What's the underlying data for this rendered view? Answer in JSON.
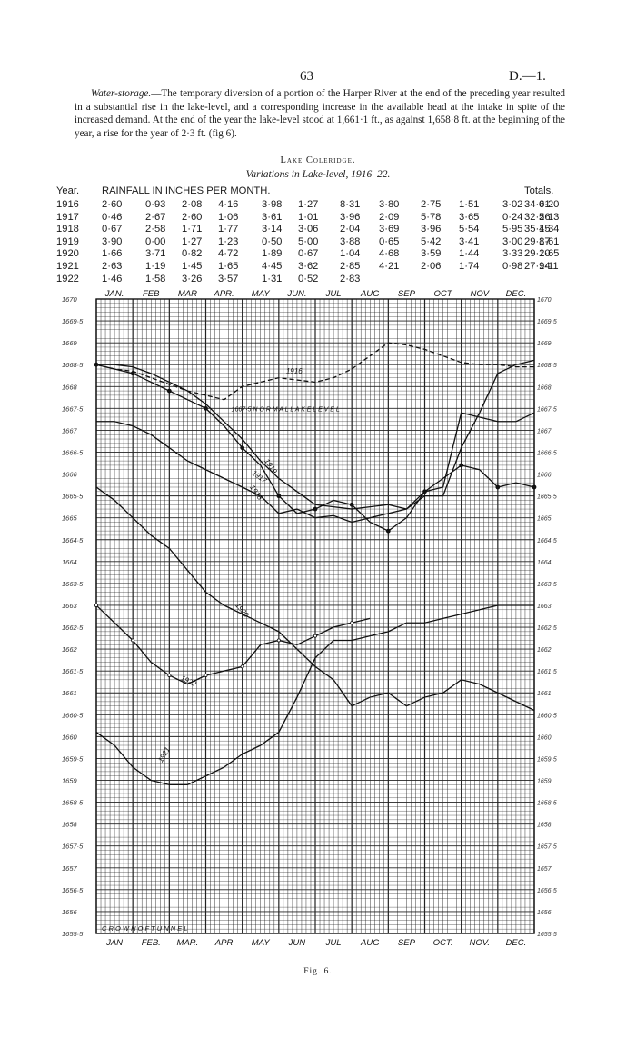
{
  "page": {
    "number": "63",
    "ref": "D.—1.",
    "para_lead": "Water-storage.",
    "para_text": "—The temporary diversion of a portion of the Harper River at the end of the preceding year resulted in a substantial rise in the lake-level, and a corresponding increase in the available head at the intake in spite of the increased demand. At the end of the year the lake-level stood at 1,661·1 ft., as against 1,658·8 ft. at the beginning of the year, a rise for the year of 2·3 ft. (fig 6).",
    "section_title": "Lake Coleridge.",
    "chart_title": "Variations in Lake-level, 1916–22.",
    "fig_caption": "Fig. 6."
  },
  "rainfall": {
    "year_header": "Year.",
    "title": "RAINFALL IN INCHES PER MONTH.",
    "totals_header": "Totals.",
    "rows": [
      {
        "year": "1916",
        "m": [
          "2·60",
          "0·93",
          "2·08",
          "4·16",
          "3·98",
          "1·27",
          "8·31",
          "3·80",
          "2·75",
          "1·51",
          "3·02",
          "0·20"
        ],
        "total": "34·61"
      },
      {
        "year": "1917",
        "m": [
          "0·46",
          "2·67",
          "2·60",
          "1·06",
          "3·61",
          "1·01",
          "3·96",
          "2·09",
          "5·78",
          "3·65",
          "0·24",
          "5·13"
        ],
        "total": "32·26"
      },
      {
        "year": "1918",
        "m": [
          "0·67",
          "2·58",
          "1·71",
          "1·77",
          "3·14",
          "3·06",
          "2·04",
          "3·69",
          "3·96",
          "5·54",
          "5·95",
          "1·34"
        ],
        "total": "35·45"
      },
      {
        "year": "1919",
        "m": [
          "3·90",
          "0·00",
          "1·27",
          "1·23",
          "0·50",
          "5·00",
          "3·88",
          "0·65",
          "5·42",
          "3·41",
          "3·00",
          "1·61"
        ],
        "total": "29·87"
      },
      {
        "year": "1920",
        "m": [
          "1·66",
          "3·71",
          "0·82",
          "4·72",
          "1·89",
          "0·67",
          "1·04",
          "4·68",
          "3·59",
          "1·44",
          "3·33",
          "1·65"
        ],
        "total": "29·20"
      },
      {
        "year": "1921",
        "m": [
          "2·63",
          "1·19",
          "1·45",
          "1·65",
          "4·45",
          "3·62",
          "2·85",
          "4·21",
          "2·06",
          "1·74",
          "0·98",
          "1·11"
        ],
        "total": "27·94"
      },
      {
        "year": "1922",
        "m": [
          "1·46",
          "1·58",
          "3·26",
          "3·57",
          "1·31",
          "0·52",
          "2·83",
          "",
          "",
          "",
          "",
          ""
        ],
        "total": ""
      }
    ]
  },
  "chart_data": {
    "type": "line",
    "title": "Variations in Lake-level, 1916–22.",
    "xlabel": "",
    "ylabel": "",
    "categories": [
      "JAN.",
      "FEB.",
      "MAR.",
      "APR.",
      "MAY",
      "JUN.",
      "JUL.",
      "AUG.",
      "SEP.",
      "OCT.",
      "NOV.",
      "DEC."
    ],
    "top_month_labels": [
      "JAN.",
      "FEB",
      "MAR",
      "APR.",
      "MAY",
      "JUN.",
      "JUL",
      "AUG",
      "SEP",
      "OCT",
      "NOV",
      "DEC."
    ],
    "bottom_month_labels": [
      "JAN",
      "FEB.",
      "MAR.",
      "APR",
      "MAY",
      "JUN",
      "JUL",
      "AUG",
      "SEP",
      "OCT.",
      "NOV.",
      "DEC."
    ],
    "ylim": [
      1655.5,
      1670
    ],
    "y_ticks_left": [
      "1670",
      "1669·5",
      "1669",
      "1668·5",
      "1668",
      "1667·5",
      "1667",
      "1666·5",
      "1666",
      "1665·5",
      "1665",
      "1664·5",
      "1664",
      "1663·5",
      "1663",
      "1662·5",
      "1662",
      "1661·5",
      "1661",
      "1660·5",
      "1660",
      "1659·5",
      "1659",
      "1658·5",
      "1658",
      "1657·5",
      "1657",
      "1656·5",
      "1656",
      "1655·5"
    ],
    "y_ticks_right": [
      "1670",
      "1669·5",
      "1669",
      "1668·5",
      "1668",
      "1667·5",
      "1667",
      "1666·5",
      "1666",
      "1665·5",
      "1665",
      "1664·5",
      "1664",
      "1663·5",
      "1663",
      "1662·5",
      "1662",
      "1661·5",
      "1661",
      "1660·5",
      "1660",
      "1659·5",
      "1659",
      "1658·5",
      "1658",
      "1657·5",
      "1657",
      "1656·5",
      "1656",
      "1655·5"
    ],
    "grid": true,
    "annotations": {
      "normal_lake_level": "1667·5 N O R M A L   L A K E   L E V E L",
      "crown_of_tunnel": "C R O W N   O F   T U N N E L"
    },
    "series": [
      {
        "name": "1916",
        "style": "dashed",
        "x": [
          0,
          0.5,
          1,
          1.5,
          2,
          2.5,
          3,
          3.5,
          4,
          4.5,
          5,
          5.5,
          6,
          6.5,
          7,
          7.5,
          8,
          8.5,
          9,
          9.5,
          10,
          10.5,
          11,
          11.5,
          12
        ],
        "y": [
          1668.5,
          1668.4,
          1668.35,
          1668.2,
          1668.05,
          1667.9,
          1667.8,
          1667.7,
          1668.0,
          1668.1,
          1668.2,
          1668.15,
          1668.1,
          1668.2,
          1668.4,
          1668.7,
          1669.0,
          1668.95,
          1668.85,
          1668.7,
          1668.55,
          1668.5,
          1668.5,
          1668.45,
          1668.45
        ]
      },
      {
        "name": "1917",
        "style": "solid",
        "x": [
          0,
          0.5,
          1,
          1.5,
          2,
          2.5,
          3,
          3.5,
          4,
          4.5,
          5,
          5.5,
          6,
          6.5,
          7,
          7.5,
          8,
          8.5,
          9,
          9.5,
          10,
          10.5,
          11,
          11.5,
          12
        ],
        "y": [
          1668.5,
          1668.5,
          1668.45,
          1668.3,
          1668.1,
          1667.9,
          1667.6,
          1667.2,
          1666.8,
          1666.3,
          1665.9,
          1665.6,
          1665.3,
          1665.25,
          1665.2,
          1665.25,
          1665.3,
          1665.2,
          1665.6,
          1665.7,
          1667.4,
          1667.3,
          1667.2,
          1667.2,
          1667.4
        ]
      },
      {
        "name": "1918",
        "style": "solid",
        "x": [
          0,
          0.5,
          1,
          1.5,
          2,
          2.5,
          3,
          3.5,
          4,
          4.5,
          5,
          5.5,
          6,
          6.5,
          7,
          7.5,
          8,
          8.5,
          9,
          9.5,
          10,
          10.5,
          11,
          11.5,
          12
        ],
        "y": [
          1667.2,
          1667.2,
          1667.1,
          1666.9,
          1666.6,
          1666.3,
          1666.1,
          1665.9,
          1665.7,
          1665.5,
          1665.1,
          1665.2,
          1665.0,
          1665.05,
          1664.9,
          1665.0,
          1665.1,
          1665.2,
          1665.5,
          1665.5,
          1666.6,
          1667.4,
          1668.3,
          1668.5,
          1668.6
        ]
      },
      {
        "name": "1919",
        "style": "dotted-marker",
        "x": [
          0,
          0.5,
          1,
          1.5,
          2,
          2.5,
          3,
          3.5,
          4,
          4.5,
          5,
          5.5,
          6,
          6.5,
          7,
          7.5,
          8,
          8.5,
          9,
          9.5,
          10,
          10.5,
          11,
          11.5,
          12
        ],
        "y": [
          1668.5,
          1668.4,
          1668.3,
          1668.1,
          1667.9,
          1667.7,
          1667.5,
          1667.1,
          1666.6,
          1666.2,
          1665.5,
          1665.1,
          1665.2,
          1665.4,
          1665.3,
          1664.9,
          1664.7,
          1665.0,
          1665.6,
          1665.9,
          1666.2,
          1666.1,
          1665.7,
          1665.8,
          1665.7
        ]
      },
      {
        "name": "1920",
        "style": "solid",
        "x": [
          0,
          0.5,
          1,
          1.5,
          2,
          2.5,
          3,
          3.5,
          4,
          4.5,
          5,
          5.5,
          6,
          6.5,
          7,
          7.5,
          8,
          8.5,
          9,
          9.5,
          10,
          10.5,
          11,
          11.5,
          12
        ],
        "y": [
          1665.7,
          1665.4,
          1665.0,
          1664.6,
          1664.3,
          1663.8,
          1663.3,
          1663.0,
          1662.8,
          1662.6,
          1662.4,
          1662.0,
          1661.6,
          1661.3,
          1660.7,
          1660.9,
          1661.0,
          1660.7,
          1660.9,
          1661.0,
          1661.3,
          1661.2,
          1661.0,
          1660.8,
          1660.6
        ]
      },
      {
        "name": "1921",
        "style": "solid",
        "x": [
          0,
          0.5,
          1,
          1.5,
          2,
          2.5,
          3,
          3.5,
          4,
          4.5,
          5,
          5.5,
          6,
          6.5,
          7,
          7.5,
          8,
          8.5,
          9,
          9.5,
          10,
          10.5,
          11,
          11.5,
          12
        ],
        "y": [
          1660.1,
          1659.8,
          1659.3,
          1659.0,
          1658.9,
          1658.9,
          1659.1,
          1659.3,
          1659.6,
          1659.8,
          1660.1,
          1660.9,
          1661.8,
          1662.2,
          1662.2,
          1662.3,
          1662.4,
          1662.6,
          1662.6,
          1662.7,
          1662.8,
          1662.9,
          1663.0,
          1663.0,
          1663.0
        ]
      },
      {
        "name": "1922",
        "style": "marker",
        "x": [
          0,
          0.5,
          1,
          1.5,
          2,
          2.5,
          3,
          3.5,
          4,
          4.5,
          5,
          5.5,
          6,
          6.5,
          7,
          7.5
        ],
        "y": [
          1663.0,
          1662.6,
          1662.2,
          1661.7,
          1661.4,
          1661.2,
          1661.4,
          1661.5,
          1661.6,
          1662.1,
          1662.2,
          1662.1,
          1662.3,
          1662.5,
          1662.6,
          1662.7
        ]
      }
    ]
  }
}
